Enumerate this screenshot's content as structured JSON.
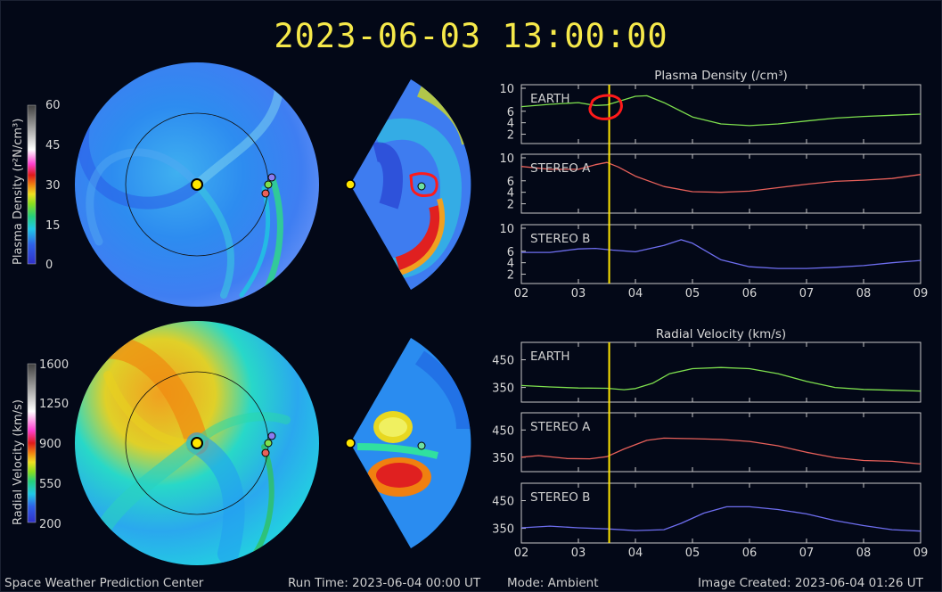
{
  "title": "2023-06-03 13:00:00",
  "footer": {
    "left": "Space Weather Prediction Center",
    "run_time": "Run Time: 2023-06-04 00:00 UT",
    "mode": "Mode: Ambient",
    "created": "Image Created: 2023-06-04 01:26 UT"
  },
  "colorbars": {
    "density": {
      "label": "Plasma Density (r²N/cm³)",
      "ticks": [
        "60",
        "45",
        "30",
        "15",
        "0"
      ]
    },
    "velocity": {
      "label": "Radial Velocity (km/s)",
      "ticks": [
        "1600",
        "1250",
        "900",
        "550",
        "200"
      ]
    }
  },
  "colors": {
    "title": "#f6e94a",
    "earth": "#7ee04e",
    "stereo_a": "#e8605a",
    "stereo_b": "#6e6ef0",
    "marker": "#ffe600"
  },
  "chart_data": [
    {
      "type": "line",
      "title": "Plasma Density (/cm³)",
      "x_ticks": [
        "02",
        "03",
        "04",
        "05",
        "06",
        "07",
        "08",
        "09"
      ],
      "current_x": 3.54,
      "series": [
        {
          "name": "EARTH",
          "y_ticks": [
            "10",
            "6",
            "4",
            "2"
          ],
          "ylim": [
            1,
            10
          ],
          "x": [
            2,
            2.5,
            3,
            3.3,
            3.5,
            3.8,
            4,
            4.2,
            4.5,
            5,
            5.5,
            6,
            6.5,
            7,
            7.5,
            8,
            8.5,
            9
          ],
          "y": [
            6.8,
            7.2,
            7.5,
            7.0,
            7.1,
            8.0,
            8.6,
            8.7,
            7.5,
            5.0,
            3.8,
            3.5,
            3.8,
            4.3,
            4.8,
            5.1,
            5.3,
            5.5
          ]
        },
        {
          "name": "STEREO A",
          "y_ticks": [
            "10",
            "6",
            "4",
            "2"
          ],
          "ylim": [
            1,
            10
          ],
          "x": [
            2,
            2.5,
            3,
            3.3,
            3.5,
            3.7,
            4,
            4.5,
            5,
            5.5,
            6,
            6.5,
            7,
            7.5,
            8,
            8.5,
            9
          ],
          "y": [
            8.5,
            8.0,
            8.0,
            8.8,
            9.2,
            8.4,
            6.8,
            5.0,
            4.1,
            4.0,
            4.2,
            4.8,
            5.4,
            5.9,
            6.1,
            6.4,
            7.1
          ]
        },
        {
          "name": "STEREO B",
          "y_ticks": [
            "10",
            "6",
            "4",
            "2"
          ],
          "ylim": [
            1,
            10
          ],
          "x": [
            2,
            2.5,
            3,
            3.3,
            3.6,
            4,
            4.5,
            4.8,
            5,
            5.5,
            6,
            6.5,
            7,
            7.5,
            8,
            8.5,
            9
          ],
          "y": [
            5.8,
            5.8,
            6.4,
            6.5,
            6.2,
            5.9,
            7.0,
            8.0,
            7.4,
            4.5,
            3.3,
            3.0,
            3.0,
            3.2,
            3.5,
            4.0,
            4.4
          ]
        }
      ]
    },
    {
      "type": "line",
      "title": "Radial Velocity (km/s)",
      "x_ticks": [
        "02",
        "03",
        "04",
        "05",
        "06",
        "07",
        "08",
        "09"
      ],
      "current_x": 3.54,
      "series": [
        {
          "name": "EARTH",
          "y_ticks": [
            "450",
            "350"
          ],
          "ylim": [
            310,
            500
          ],
          "x": [
            2,
            2.5,
            3,
            3.5,
            3.8,
            4,
            4.3,
            4.6,
            5,
            5.5,
            6,
            6.5,
            7,
            7.5,
            8,
            8.5,
            9
          ],
          "y": [
            357,
            352,
            348,
            347,
            342,
            346,
            365,
            400,
            418,
            422,
            418,
            400,
            372,
            350,
            343,
            340,
            337
          ]
        },
        {
          "name": "STEREO A",
          "y_ticks": [
            "450",
            "350"
          ],
          "ylim": [
            310,
            500
          ],
          "x": [
            2,
            2.3,
            2.8,
            3.2,
            3.5,
            3.8,
            4.2,
            4.5,
            5,
            5.5,
            6,
            6.5,
            7,
            7.5,
            8,
            8.5,
            9
          ],
          "y": [
            350,
            356,
            345,
            344,
            352,
            380,
            412,
            420,
            418,
            415,
            408,
            392,
            368,
            348,
            338,
            335,
            325
          ]
        },
        {
          "name": "STEREO B",
          "y_ticks": [
            "450",
            "350"
          ],
          "ylim": [
            310,
            500
          ],
          "x": [
            2,
            2.5,
            3,
            3.5,
            4,
            4.5,
            4.8,
            5.2,
            5.6,
            6,
            6.5,
            7,
            7.5,
            8,
            8.5,
            9
          ],
          "y": [
            352,
            358,
            352,
            348,
            342,
            345,
            368,
            405,
            428,
            428,
            418,
            402,
            378,
            360,
            345,
            340
          ]
        }
      ]
    }
  ]
}
